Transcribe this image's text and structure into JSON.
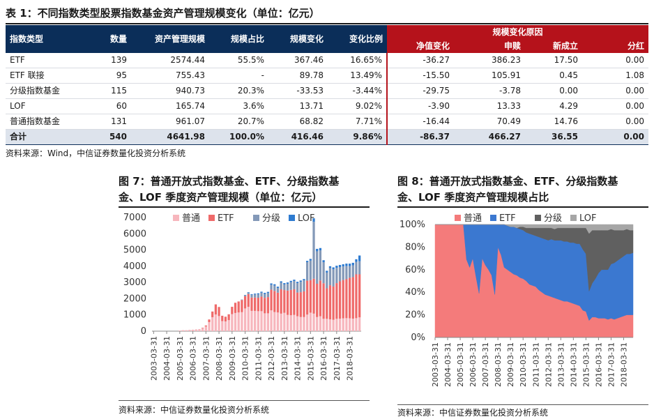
{
  "table": {
    "title": "表 1：不同指数类型股票指数基金资产管理规模变化（单位：亿元）",
    "headers": [
      "指数类型",
      "数量",
      "资产管理规模",
      "规模占比",
      "规模变化",
      "变化比例"
    ],
    "reason_header": "规模变化原因",
    "reason_subheaders": [
      "净值变化",
      "申赎",
      "新成立",
      "分红"
    ],
    "rows": [
      [
        "ETF",
        "139",
        "2574.44",
        "55.5%",
        "367.46",
        "16.65%",
        "-36.27",
        "386.23",
        "17.50",
        "0.00"
      ],
      [
        "ETF 联接",
        "95",
        "755.43",
        "-",
        "89.78",
        "13.49%",
        "-15.50",
        "105.91",
        "0.45",
        "1.08"
      ],
      [
        "分级指数基金",
        "115",
        "940.73",
        "20.3%",
        "-33.53",
        "-3.44%",
        "-29.75",
        "-3.78",
        "0.00",
        "0.00"
      ],
      [
        "LOF",
        "60",
        "165.74",
        "3.6%",
        "13.71",
        "9.02%",
        "-3.90",
        "13.33",
        "4.29",
        "0.00"
      ],
      [
        "普通指数基金",
        "131",
        "961.07",
        "20.7%",
        "68.82",
        "7.71%",
        "-16.44",
        "70.49",
        "14.76",
        "0.00"
      ]
    ],
    "total": [
      "合计",
      "540",
      "4641.98",
      "100.0%",
      "416.46",
      "9.86%",
      "-86.37",
      "466.27",
      "36.55",
      "0.00"
    ],
    "source": "资料来源：Wind，中信证券数量化投资分析系统"
  },
  "fig7": {
    "title_line1": "图 7：普通开放式指数基金、ETF、分级指数基",
    "title_line2": "金、LOF 季度资产管理规模（单位：亿元）",
    "source": "资料来源：中信证券数量化投资分析系统"
  },
  "fig8": {
    "title_line1": "图 8：普通开放式指数基金、ETF、分级指数基",
    "title_line2": "金、LOF 季度资产管理规模占比",
    "source": "资料来源：中信证券数量化投资分析系统"
  },
  "chart_data": [
    {
      "type": "bar",
      "stacked": true,
      "x": [
        "2003-03-31",
        "2003-06-30",
        "2003-09-30",
        "2003-12-31",
        "2004-03-31",
        "2004-06-30",
        "2004-09-30",
        "2004-12-31",
        "2005-03-31",
        "2005-06-30",
        "2005-09-30",
        "2005-12-31",
        "2006-03-31",
        "2006-06-30",
        "2006-09-30",
        "2006-12-31",
        "2007-03-31",
        "2007-06-30",
        "2007-09-30",
        "2007-12-31",
        "2008-03-31",
        "2008-06-30",
        "2008-09-30",
        "2008-12-31",
        "2009-03-31",
        "2009-06-30",
        "2009-09-30",
        "2009-12-31",
        "2010-03-31",
        "2010-06-30",
        "2010-09-30",
        "2010-12-31",
        "2011-03-31",
        "2011-06-30",
        "2011-09-30",
        "2011-12-31",
        "2012-03-31",
        "2012-06-30",
        "2012-09-30",
        "2012-12-31",
        "2013-03-31",
        "2013-06-30",
        "2013-09-30",
        "2013-12-31",
        "2014-03-31",
        "2014-06-30",
        "2014-09-30",
        "2014-12-31",
        "2015-03-31",
        "2015-06-30",
        "2015-09-30",
        "2015-12-31",
        "2016-03-31",
        "2016-06-30",
        "2016-09-30",
        "2016-12-31",
        "2017-03-31",
        "2017-06-30",
        "2017-09-30",
        "2017-12-31",
        "2018-03-31",
        "2018-06-30",
        "2018-09-30",
        "2018-12-31"
      ],
      "tick_labels": [
        "2003-03-31",
        "2004-03-31",
        "2005-03-31",
        "2006-03-31",
        "2007-03-31",
        "2008-03-31",
        "2009-03-31",
        "2010-03-31",
        "2011-03-31",
        "2012-03-31",
        "2013-03-31",
        "2014-03-31",
        "2015-03-31",
        "2016-03-31",
        "2017-03-31",
        "2018-03-31"
      ],
      "ylim": [
        0,
        7000
      ],
      "yticks": [
        0,
        1000,
        2000,
        3000,
        4000,
        5000,
        6000,
        7000
      ],
      "legend_position": "top",
      "series": [
        {
          "name": "普通",
          "color": "#f7b6bd",
          "values": [
            0,
            0,
            0,
            0,
            0,
            0,
            0,
            0,
            40,
            60,
            60,
            80,
            90,
            110,
            130,
            180,
            290,
            560,
            860,
            1030,
            930,
            620,
            600,
            680,
            1050,
            1120,
            1150,
            1170,
            1400,
            1500,
            1250,
            1250,
            1230,
            1230,
            1100,
            1100,
            1280,
            1180,
            1150,
            1080,
            1130,
            1000,
            980,
            1000,
            920,
            870,
            870,
            1020,
            1140,
            1080,
            870,
            920,
            760,
            760,
            730,
            700,
            760,
            770,
            790,
            800,
            790,
            770,
            800,
            850
          ]
        },
        {
          "name": "ETF",
          "color": "#ef6a6a",
          "values": [
            0,
            0,
            0,
            0,
            0,
            0,
            0,
            0,
            0,
            0,
            0,
            0,
            0,
            0,
            0,
            30,
            60,
            160,
            350,
            620,
            560,
            330,
            290,
            360,
            450,
            630,
            680,
            750,
            750,
            780,
            820,
            820,
            830,
            900,
            950,
            1000,
            1280,
            1300,
            1220,
            1500,
            1400,
            1500,
            1560,
            1580,
            1460,
            1530,
            1580,
            2090,
            2000,
            2150,
            2050,
            2200,
            2190,
            1880,
            2100,
            2050,
            2200,
            2300,
            2360,
            2400,
            2500,
            2560,
            2700,
            2650
          ]
        },
        {
          "name": "分级",
          "color": "#8499b8",
          "values": [
            0,
            0,
            0,
            0,
            0,
            0,
            0,
            0,
            0,
            0,
            0,
            0,
            0,
            0,
            0,
            0,
            0,
            0,
            0,
            0,
            0,
            0,
            0,
            0,
            0,
            0,
            0,
            20,
            60,
            90,
            170,
            190,
            210,
            240,
            240,
            250,
            300,
            330,
            290,
            410,
            350,
            420,
            480,
            510,
            580,
            640,
            680,
            1140,
            1210,
            3510,
            2000,
            1860,
            1300,
            970,
            1060,
            1060,
            940,
            880,
            840,
            810,
            720,
            730,
            770,
            810
          ]
        },
        {
          "name": "LOF",
          "color": "#2e7bd0",
          "values": [
            0,
            0,
            0,
            0,
            0,
            0,
            0,
            0,
            0,
            0,
            0,
            0,
            0,
            0,
            0,
            0,
            0,
            0,
            0,
            0,
            0,
            0,
            0,
            0,
            0,
            0,
            0,
            10,
            20,
            30,
            40,
            50,
            60,
            60,
            70,
            70,
            80,
            80,
            80,
            80,
            80,
            80,
            80,
            80,
            80,
            80,
            80,
            80,
            100,
            210,
            150,
            140,
            120,
            110,
            110,
            120,
            130,
            130,
            130,
            150,
            150,
            150,
            160,
            350
          ]
        }
      ]
    },
    {
      "type": "area",
      "stacked": true,
      "x": [
        "2003-03-31",
        "2003-06-30",
        "2003-09-30",
        "2003-12-31",
        "2004-03-31",
        "2004-06-30",
        "2004-09-30",
        "2004-12-31",
        "2005-03-31",
        "2005-06-30",
        "2005-09-30",
        "2005-12-31",
        "2006-03-31",
        "2006-06-30",
        "2006-09-30",
        "2006-12-31",
        "2007-03-31",
        "2007-06-30",
        "2007-09-30",
        "2007-12-31",
        "2008-03-31",
        "2008-06-30",
        "2008-09-30",
        "2008-12-31",
        "2009-03-31",
        "2009-06-30",
        "2009-09-30",
        "2009-12-31",
        "2010-03-31",
        "2010-06-30",
        "2010-09-30",
        "2010-12-31",
        "2011-03-31",
        "2011-06-30",
        "2011-09-30",
        "2011-12-31",
        "2012-03-31",
        "2012-06-30",
        "2012-09-30",
        "2012-12-31",
        "2013-03-31",
        "2013-06-30",
        "2013-09-30",
        "2013-12-31",
        "2014-03-31",
        "2014-06-30",
        "2014-09-30",
        "2014-12-31",
        "2015-03-31",
        "2015-06-30",
        "2015-09-30",
        "2015-12-31",
        "2016-03-31",
        "2016-06-30",
        "2016-09-30",
        "2016-12-31",
        "2017-03-31",
        "2017-06-30",
        "2017-09-30",
        "2017-12-31",
        "2018-03-31",
        "2018-06-30",
        "2018-09-30",
        "2018-12-31"
      ],
      "tick_labels": [
        "2003-03-31",
        "2004-03-31",
        "2005-03-31",
        "2006-03-31",
        "2007-03-31",
        "2008-03-31",
        "2009-03-31",
        "2010-03-31",
        "2011-03-31",
        "2012-03-31",
        "2013-03-31",
        "2014-03-31",
        "2015-03-31",
        "2016-03-31",
        "2017-03-31",
        "2018-03-31"
      ],
      "ylim": [
        0,
        100
      ],
      "yticks": [
        "0%",
        "20%",
        "40%",
        "60%",
        "80%",
        "100%"
      ],
      "legend_position": "top",
      "series": [
        {
          "name": "普通",
          "color": "#f47b7b",
          "values": [
            100,
            100,
            100,
            100,
            100,
            100,
            100,
            100,
            100,
            100,
            69,
            62,
            70,
            54,
            39,
            70,
            64,
            60,
            55,
            38,
            80,
            73,
            62,
            60,
            58,
            56,
            55,
            53,
            52,
            50,
            47,
            46,
            45,
            42,
            40,
            38,
            37,
            36,
            35,
            34,
            33,
            32,
            32,
            31,
            30,
            29,
            28,
            24,
            23,
            15,
            18,
            18,
            17,
            17,
            17,
            16,
            17,
            16,
            17,
            18,
            19,
            20,
            20,
            20
          ]
        },
        {
          "name": "ETF",
          "color": "#3b78d0",
          "values": [
            0,
            0,
            0,
            0,
            0,
            0,
            0,
            0,
            0,
            0,
            31,
            38,
            30,
            46,
            61,
            30,
            36,
            40,
            45,
            62,
            20,
            27,
            38,
            39,
            40,
            42,
            42,
            43,
            43,
            43,
            45,
            45,
            45,
            47,
            48,
            49,
            49,
            51,
            51,
            52,
            53,
            53,
            53,
            53,
            54,
            54,
            55,
            54,
            51,
            26,
            30,
            34,
            40,
            43,
            43,
            44,
            48,
            50,
            51,
            52,
            53,
            54,
            54,
            55
          ]
        },
        {
          "name": "分级",
          "color": "#606060",
          "values": [
            0,
            0,
            0,
            0,
            0,
            0,
            0,
            0,
            0,
            0,
            0,
            0,
            0,
            0,
            0,
            0,
            0,
            0,
            0,
            0,
            0,
            0,
            0,
            0,
            0,
            0,
            0,
            2,
            3,
            4,
            5,
            6,
            7,
            8,
            9,
            10,
            11,
            10,
            10,
            11,
            11,
            12,
            12,
            13,
            13,
            14,
            14,
            19,
            23,
            51,
            47,
            43,
            38,
            35,
            35,
            35,
            31,
            29,
            27,
            25,
            23,
            22,
            21,
            20
          ]
        },
        {
          "name": "LOF",
          "color": "#a6a6a6",
          "values": [
            0,
            0,
            0,
            0,
            0,
            0,
            0,
            0,
            0,
            0,
            0,
            0,
            0,
            0,
            0,
            0,
            0,
            0,
            0,
            0,
            0,
            0,
            0,
            1,
            2,
            2,
            3,
            2,
            2,
            3,
            3,
            3,
            3,
            3,
            3,
            3,
            3,
            3,
            4,
            3,
            3,
            3,
            3,
            3,
            3,
            3,
            3,
            3,
            3,
            8,
            5,
            5,
            5,
            5,
            5,
            5,
            4,
            5,
            5,
            5,
            5,
            4,
            5,
            5
          ]
        }
      ]
    }
  ]
}
